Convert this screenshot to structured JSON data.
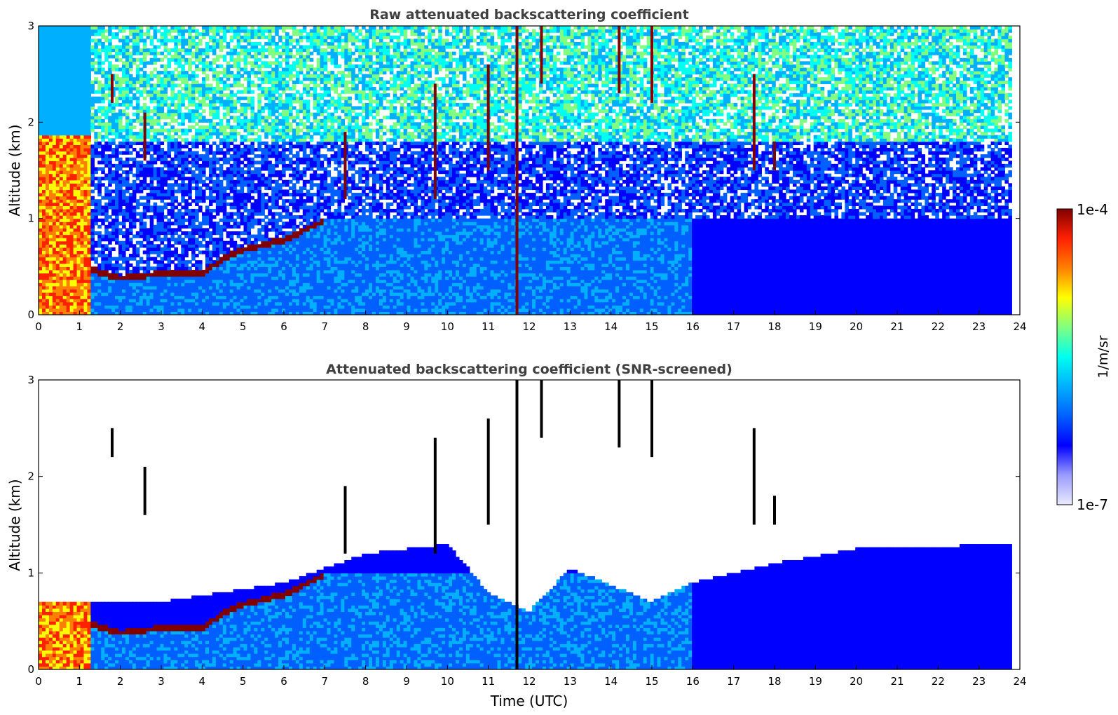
{
  "chart_data": [
    {
      "type": "heatmap",
      "title": "Raw attenuated backscattering coefficient",
      "xlabel": "",
      "ylabel": "Altitude (km)",
      "xlim": [
        0,
        24
      ],
      "ylim": [
        0,
        3
      ],
      "x_ticks": [
        "0",
        "1",
        "2",
        "3",
        "4",
        "5",
        "6",
        "7",
        "8",
        "9",
        "10",
        "11",
        "12",
        "13",
        "14",
        "15",
        "16",
        "17",
        "18",
        "19",
        "20",
        "21",
        "22",
        "23",
        "24"
      ],
      "y_ticks": [
        "0",
        "1",
        "2",
        "3"
      ],
      "data_extent_hours": 23.8,
      "features": {
        "boundary_layer_top_km": [
          [
            1.2,
            0.45
          ],
          [
            2,
            0.35
          ],
          [
            3,
            0.4
          ],
          [
            4,
            0.4
          ],
          [
            4.5,
            0.55
          ],
          [
            5,
            0.65
          ],
          [
            5.5,
            0.7
          ],
          [
            6,
            0.75
          ],
          [
            6.5,
            0.85
          ],
          [
            7,
            0.95
          ]
        ],
        "fog_or_low_cloud": {
          "x_range_h": [
            0,
            1.25
          ],
          "top_km": 1.85
        },
        "high_clouds": [
          {
            "x_h": 1.8,
            "alt_km": [
              2.2,
              2.5
            ]
          },
          {
            "x_h": 2.6,
            "alt_km": [
              1.6,
              2.1
            ]
          },
          {
            "x_h": 7.5,
            "alt_km": [
              1.2,
              1.9
            ]
          },
          {
            "x_h": 9.7,
            "alt_km": [
              1.2,
              2.4
            ]
          },
          {
            "x_h": 11.0,
            "alt_km": [
              1.5,
              2.6
            ]
          },
          {
            "x_h": 11.7,
            "alt_km": [
              0.0,
              3.0
            ]
          },
          {
            "x_h": 12.3,
            "alt_km": [
              2.4,
              3.0
            ]
          },
          {
            "x_h": 14.2,
            "alt_km": [
              2.3,
              3.0
            ]
          },
          {
            "x_h": 15.0,
            "alt_km": [
              2.2,
              3.0
            ]
          },
          {
            "x_h": 17.5,
            "alt_km": [
              1.5,
              2.5
            ]
          },
          {
            "x_h": 18.0,
            "alt_km": [
              1.5,
              1.8
            ]
          }
        ]
      }
    },
    {
      "type": "heatmap",
      "title": "Attenuated backscattering coefficient (SNR-screened)",
      "xlabel": "Time (UTC)",
      "ylabel": "Altitude (km)",
      "xlim": [
        0,
        24
      ],
      "ylim": [
        0,
        3
      ],
      "x_ticks": [
        "0",
        "1",
        "2",
        "3",
        "4",
        "5",
        "6",
        "7",
        "8",
        "9",
        "10",
        "11",
        "12",
        "13",
        "14",
        "15",
        "16",
        "17",
        "18",
        "19",
        "20",
        "21",
        "22",
        "23",
        "24"
      ],
      "y_ticks": [
        "0",
        "1",
        "2",
        "3"
      ],
      "data_extent_hours": 23.8,
      "screened_top_km": [
        [
          1.2,
          0.7
        ],
        [
          3,
          0.7
        ],
        [
          4.5,
          0.8
        ],
        [
          6,
          0.9
        ],
        [
          7,
          1.05
        ],
        [
          8,
          1.2
        ],
        [
          10,
          1.3
        ],
        [
          11,
          0.8
        ],
        [
          12,
          0.6
        ],
        [
          13,
          1.05
        ],
        [
          15,
          0.7
        ],
        [
          16,
          0.9
        ],
        [
          18,
          1.1
        ],
        [
          20,
          1.25
        ],
        [
          23.8,
          1.3
        ]
      ]
    }
  ],
  "colorbar": {
    "label": "1/m/sr",
    "max_label": "1e-4",
    "min_label": "1e-7",
    "colormap_stops": [
      "#eaeaff",
      "#9b9bff",
      "#0000ff",
      "#0060ff",
      "#00b0ff",
      "#00ffee",
      "#80ff80",
      "#ffff00",
      "#ff8000",
      "#ff2000",
      "#800000"
    ]
  }
}
